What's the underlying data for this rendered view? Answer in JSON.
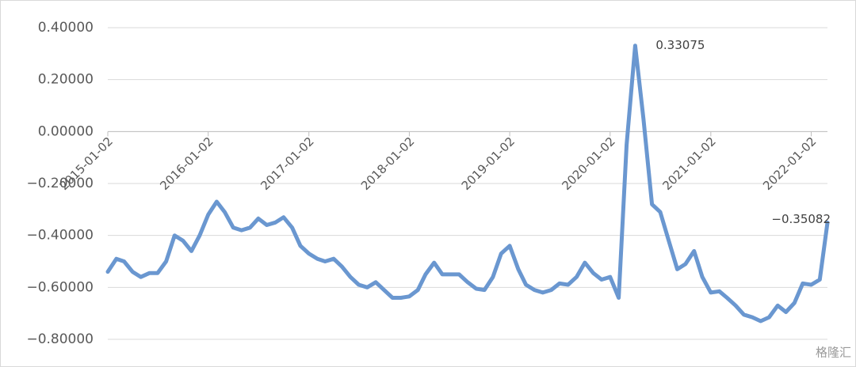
{
  "chart_data": {
    "type": "line",
    "x": [
      "2015-01-02",
      "2015-02-02",
      "2015-03-02",
      "2015-04-02",
      "2015-05-02",
      "2015-06-02",
      "2015-07-02",
      "2015-08-02",
      "2015-09-02",
      "2015-10-02",
      "2015-11-02",
      "2015-12-02",
      "2016-01-02",
      "2016-02-02",
      "2016-03-02",
      "2016-04-02",
      "2016-05-02",
      "2016-06-02",
      "2016-07-02",
      "2016-08-02",
      "2016-09-02",
      "2016-10-02",
      "2016-11-02",
      "2016-12-02",
      "2017-01-02",
      "2017-02-02",
      "2017-03-02",
      "2017-04-02",
      "2017-05-02",
      "2017-06-02",
      "2017-07-02",
      "2017-08-02",
      "2017-09-02",
      "2017-10-02",
      "2017-11-02",
      "2017-12-02",
      "2018-01-02",
      "2018-02-02",
      "2018-03-02",
      "2018-04-02",
      "2018-05-02",
      "2018-06-02",
      "2018-07-02",
      "2018-08-02",
      "2018-09-02",
      "2018-10-02",
      "2018-11-02",
      "2018-12-02",
      "2019-01-02",
      "2019-02-02",
      "2019-03-02",
      "2019-04-02",
      "2019-05-02",
      "2019-06-02",
      "2019-07-02",
      "2019-08-02",
      "2019-09-02",
      "2019-10-02",
      "2019-11-02",
      "2019-12-02",
      "2020-01-02",
      "2020-02-02",
      "2020-03-02",
      "2020-04-02",
      "2020-05-02",
      "2020-06-02",
      "2020-07-02",
      "2020-08-02",
      "2020-09-02",
      "2020-10-02",
      "2020-11-02",
      "2020-12-02",
      "2021-01-02",
      "2021-02-02",
      "2021-03-02",
      "2021-04-02",
      "2021-05-02",
      "2021-06-02",
      "2021-07-02",
      "2021-08-02",
      "2021-09-02",
      "2021-10-02",
      "2021-11-02",
      "2021-12-02",
      "2022-01-02",
      "2022-02-02",
      "2022-03-02"
    ],
    "series": [
      {
        "color": "#6a97d0",
        "values": [
          -0.54,
          -0.49,
          -0.5,
          -0.54,
          -0.56,
          -0.545,
          -0.545,
          -0.5,
          -0.4,
          -0.42,
          -0.46,
          -0.4,
          -0.32,
          -0.27,
          -0.31,
          -0.37,
          -0.38,
          -0.37,
          -0.335,
          -0.36,
          -0.35,
          -0.33,
          -0.37,
          -0.44,
          -0.47,
          -0.49,
          -0.5,
          -0.49,
          -0.52,
          -0.56,
          -0.59,
          -0.6,
          -0.58,
          -0.61,
          -0.64,
          -0.64,
          -0.635,
          -0.61,
          -0.55,
          -0.505,
          -0.55,
          -0.55,
          -0.55,
          -0.58,
          -0.605,
          -0.61,
          -0.56,
          -0.47,
          -0.44,
          -0.53,
          -0.59,
          -0.61,
          -0.62,
          -0.61,
          -0.585,
          -0.59,
          -0.56,
          -0.505,
          -0.545,
          -0.57,
          -0.56,
          -0.64,
          -0.05,
          0.33075,
          0.05,
          -0.28,
          -0.31,
          -0.42,
          -0.53,
          -0.51,
          -0.46,
          -0.56,
          -0.62,
          -0.615,
          -0.64,
          -0.67,
          -0.705,
          -0.715,
          -0.73,
          -0.715,
          -0.67,
          -0.695,
          -0.66,
          -0.585,
          -0.59,
          -0.57,
          -0.35082
        ],
        "value_labels": [
          null,
          null,
          null,
          null,
          null,
          null,
          null,
          null,
          null,
          null,
          null,
          null,
          null,
          null,
          null,
          null,
          null,
          null,
          null,
          null,
          null,
          null,
          null,
          null,
          null,
          null,
          null,
          null,
          null,
          null,
          null,
          null,
          null,
          null,
          null,
          null,
          null,
          null,
          null,
          null,
          null,
          null,
          null,
          null,
          null,
          null,
          null,
          null,
          null,
          null,
          null,
          null,
          null,
          null,
          null,
          null,
          null,
          null,
          null,
          null,
          null,
          null,
          null,
          "0.33075",
          null,
          null,
          null,
          null,
          null,
          null,
          null,
          null,
          null,
          null,
          null,
          null,
          null,
          null,
          null,
          null,
          null,
          null,
          null,
          null,
          null,
          null,
          "−0.35082"
        ]
      }
    ],
    "xlim": [
      "2015-01-02",
      "2022-03-02"
    ],
    "xticks": [
      "2015-01-02",
      "2016-01-02",
      "2017-01-02",
      "2018-01-02",
      "2019-01-02",
      "2020-01-02",
      "2021-01-02",
      "2022-01-02"
    ],
    "ylim": [
      -0.8,
      0.4
    ],
    "yticks": [
      {
        "value": 0.4,
        "label": "0.40000"
      },
      {
        "value": 0.2,
        "label": "0.20000"
      },
      {
        "value": 0,
        "label": "0.00000"
      },
      {
        "value": -0.2,
        "label": "−0.20000"
      },
      {
        "value": -0.4,
        "label": "−0.40000"
      },
      {
        "value": -0.6,
        "label": "−0.60000"
      },
      {
        "value": -0.8,
        "label": "−0.80000"
      }
    ],
    "grid": true,
    "watermark": "格隆汇"
  }
}
